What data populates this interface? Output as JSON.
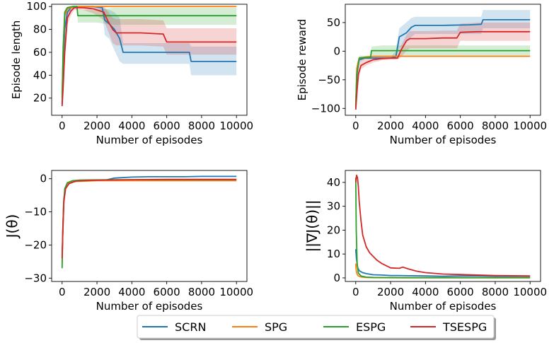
{
  "legend": {
    "entries": [
      {
        "name": "SCRN",
        "color": "#1f77b4"
      },
      {
        "name": "SPG",
        "color": "#ff7f0e"
      },
      {
        "name": "ESPG",
        "color": "#2ca02c"
      },
      {
        "name": "TSESPG",
        "color": "#d62728"
      }
    ]
  },
  "chart_data": [
    {
      "type": "line",
      "title": "",
      "xlabel": "Number of episodes",
      "ylabel": "Episode length",
      "xlim": [
        -600,
        10600
      ],
      "ylim": [
        5,
        102
      ],
      "xticks": [
        0,
        2000,
        4000,
        6000,
        8000,
        10000
      ],
      "yticks": [
        20,
        40,
        60,
        80,
        100
      ],
      "grid": false,
      "series": [
        {
          "name": "SCRN",
          "color": "#1f77b4",
          "x": [
            0,
            60,
            150,
            300,
            500,
            800,
            1200,
            1800,
            2300,
            2450,
            2700,
            3000,
            3300,
            3500,
            4000,
            5000,
            6000,
            7000,
            7300,
            7400,
            8000,
            9000,
            10000
          ],
          "y": [
            15,
            45,
            80,
            95,
            99,
            100,
            100,
            100,
            99,
            88,
            85,
            80,
            72,
            60,
            60,
            60,
            60,
            60,
            60,
            52,
            52,
            52,
            52
          ],
          "band_lo": [
            12,
            35,
            70,
            90,
            97,
            99,
            99,
            99,
            95,
            75,
            72,
            62,
            52,
            50,
            50,
            50,
            50,
            50,
            50,
            40,
            40,
            40,
            40
          ],
          "band_hi": [
            18,
            55,
            90,
            99,
            100,
            100,
            100,
            100,
            100,
            98,
            97,
            95,
            90,
            68,
            68,
            68,
            68,
            68,
            68,
            65,
            65,
            65,
            65
          ]
        },
        {
          "name": "SPG",
          "color": "#ff7f0e",
          "x": [
            0,
            60,
            150,
            300,
            600,
            1000,
            3000,
            6000,
            10000
          ],
          "y": [
            20,
            60,
            92,
            98,
            99.5,
            100,
            100,
            100,
            100
          ],
          "band_lo": [
            18,
            55,
            88,
            97,
            99,
            99.5,
            99.5,
            99.5,
            99.5
          ],
          "band_hi": [
            22,
            65,
            95,
            99,
            100,
            100.5,
            100.5,
            100.5,
            100.5
          ]
        },
        {
          "name": "ESPG",
          "color": "#2ca02c",
          "x": [
            0,
            60,
            150,
            300,
            600,
            850,
            900,
            2000,
            2400,
            3000,
            5000,
            8000,
            10000
          ],
          "y": [
            20,
            65,
            95,
            99,
            100,
            100,
            92,
            92,
            92,
            92,
            92,
            92,
            92
          ],
          "band_lo": [
            18,
            55,
            92,
            98,
            99,
            99,
            86,
            86,
            85,
            84,
            84,
            84,
            84
          ],
          "band_hi": [
            22,
            70,
            98,
            100,
            100.5,
            100.5,
            97,
            97,
            98,
            99,
            99,
            99,
            99
          ]
        },
        {
          "name": "TSESPG",
          "color": "#d62728",
          "x": [
            0,
            60,
            150,
            300,
            500,
            700,
            900,
            1200,
            1800,
            2400,
            2600,
            2900,
            3100,
            3500,
            4500,
            5800,
            6000,
            7000,
            8000,
            10000
          ],
          "y": [
            13,
            30,
            60,
            90,
            96,
            99,
            99,
            99,
            98,
            95,
            88,
            80,
            77,
            77,
            77,
            76,
            69,
            69,
            69,
            69
          ],
          "band_lo": [
            11,
            25,
            50,
            84,
            92,
            97,
            97,
            97,
            94,
            88,
            80,
            68,
            66,
            66,
            66,
            65,
            58,
            58,
            58,
            58
          ],
          "band_hi": [
            15,
            38,
            70,
            95,
            99,
            100,
            100,
            100,
            100,
            100,
            96,
            90,
            89,
            89,
            89,
            88,
            81,
            81,
            81,
            81
          ]
        }
      ]
    },
    {
      "type": "line",
      "title": "",
      "xlabel": "Number of episodes",
      "ylabel": "Episode reward",
      "xlim": [
        -600,
        10600
      ],
      "ylim": [
        -112,
        82
      ],
      "xticks": [
        0,
        2000,
        4000,
        6000,
        8000,
        10000
      ],
      "yticks": [
        -100,
        -50,
        0,
        50
      ],
      "grid": false,
      "series": [
        {
          "name": "SCRN",
          "color": "#1f77b4",
          "x": [
            0,
            60,
            200,
            500,
            1000,
            1500,
            2000,
            2300,
            2500,
            2900,
            3200,
            3400,
            5000,
            6500,
            7200,
            7300,
            8000,
            10000
          ],
          "y": [
            -98,
            -40,
            -15,
            -12,
            -12,
            -12,
            -12,
            -10,
            25,
            32,
            42,
            45,
            45,
            46,
            47,
            55,
            55,
            55
          ],
          "band_lo": [
            -100,
            -60,
            -20,
            -14,
            -14,
            -14,
            -14,
            -14,
            5,
            15,
            25,
            30,
            30,
            30,
            30,
            40,
            40,
            40
          ],
          "band_hi": [
            -95,
            -25,
            -10,
            -10,
            -10,
            -10,
            -10,
            0,
            40,
            50,
            58,
            60,
            60,
            60,
            60,
            72,
            72,
            72
          ]
        },
        {
          "name": "SPG",
          "color": "#ff7f0e",
          "x": [
            0,
            60,
            200,
            600,
            1000,
            3000,
            6000,
            10000
          ],
          "y": [
            -95,
            -30,
            -12,
            -10,
            -9,
            -9,
            -9,
            -9
          ],
          "band_lo": [
            -98,
            -40,
            -14,
            -11,
            -10,
            -10,
            -10,
            -10
          ],
          "band_hi": [
            -92,
            -20,
            -10,
            -9,
            -8,
            -8,
            -8,
            -8
          ]
        },
        {
          "name": "ESPG",
          "color": "#2ca02c",
          "x": [
            0,
            60,
            200,
            600,
            850,
            900,
            1500,
            2500,
            4000,
            6000,
            8000,
            10000
          ],
          "y": [
            -95,
            -40,
            -12,
            -11,
            -11,
            1,
            1,
            1,
            1,
            1,
            1,
            1
          ],
          "band_lo": [
            -100,
            -55,
            -15,
            -13,
            -13,
            -8,
            -8,
            -9,
            -9,
            -9,
            -9,
            -9
          ],
          "band_hi": [
            -90,
            -25,
            -8,
            -8,
            -8,
            8,
            10,
            10,
            10,
            10,
            10,
            10
          ]
        },
        {
          "name": "TSESPG",
          "color": "#d62728",
          "x": [
            0,
            60,
            150,
            300,
            600,
            1000,
            1500,
            2000,
            2400,
            2600,
            2900,
            3100,
            4000,
            5000,
            5800,
            6000,
            7000,
            8000,
            10000
          ],
          "y": [
            -102,
            -75,
            -40,
            -25,
            -20,
            -15,
            -13,
            -12,
            -12,
            2,
            18,
            22,
            22,
            23,
            23,
            33,
            34,
            34,
            34
          ],
          "band_lo": [
            -104,
            -85,
            -55,
            -32,
            -25,
            -20,
            -16,
            -15,
            -15,
            -10,
            0,
            5,
            5,
            5,
            5,
            18,
            18,
            18,
            18
          ],
          "band_hi": [
            -100,
            -60,
            -25,
            -15,
            -12,
            -10,
            -9,
            -8,
            -8,
            10,
            28,
            35,
            35,
            36,
            36,
            48,
            50,
            50,
            50
          ]
        }
      ]
    },
    {
      "type": "line",
      "title": "",
      "xlabel": "Number of episodes",
      "ylabel": "J(θ)",
      "xlim": [
        -600,
        10600
      ],
      "ylim": [
        -31,
        2.5
      ],
      "xticks": [
        0,
        2000,
        4000,
        6000,
        8000,
        10000
      ],
      "yticks": [
        -30,
        -20,
        -10,
        0
      ],
      "grid": false,
      "series": [
        {
          "name": "SCRN",
          "color": "#1f77b4",
          "x": [
            0,
            40,
            100,
            200,
            400,
            800,
            1500,
            2500,
            3000,
            4000,
            5000,
            6000,
            7000,
            8000,
            9000,
            10000
          ],
          "y": [
            -24,
            -15,
            -6,
            -2.5,
            -1.2,
            -0.7,
            -0.5,
            -0.4,
            0.2,
            0.5,
            0.6,
            0.6,
            0.6,
            0.7,
            0.7,
            0.7
          ]
        },
        {
          "name": "SPG",
          "color": "#ff7f0e",
          "x": [
            0,
            40,
            100,
            200,
            400,
            800,
            2000,
            5000,
            10000
          ],
          "y": [
            -25,
            -16,
            -6,
            -2.5,
            -1.2,
            -0.8,
            -0.6,
            -0.6,
            -0.6
          ]
        },
        {
          "name": "ESPG",
          "color": "#2ca02c",
          "x": [
            0,
            30,
            80,
            150,
            300,
            600,
            1000,
            3000,
            6000,
            10000
          ],
          "y": [
            -27,
            -18,
            -8,
            -3,
            -1.2,
            -0.6,
            -0.4,
            -0.3,
            -0.3,
            -0.3
          ]
        },
        {
          "name": "TSESPG",
          "color": "#d62728",
          "x": [
            0,
            40,
            100,
            200,
            400,
            800,
            1500,
            2500,
            4000,
            6000,
            8000,
            10000
          ],
          "y": [
            -24,
            -16,
            -7,
            -3,
            -1.5,
            -0.7,
            -0.5,
            -0.4,
            -0.3,
            -0.2,
            -0.2,
            -0.2
          ]
        }
      ]
    },
    {
      "type": "line",
      "title": "",
      "xlabel": "Number of episodes",
      "ylabel": "||∇J(θ)||",
      "xlim": [
        -600,
        10600
      ],
      "ylim": [
        -1.5,
        45
      ],
      "xticks": [
        0,
        2000,
        4000,
        6000,
        8000,
        10000
      ],
      "yticks": [
        0,
        10,
        20,
        30,
        40
      ],
      "grid": false,
      "series": [
        {
          "name": "SCRN",
          "color": "#1f77b4",
          "x": [
            0,
            40,
            100,
            200,
            400,
            600,
            1000,
            1500,
            2000,
            2500,
            3000,
            4000,
            5000,
            6000,
            7000,
            8000,
            9000,
            10000
          ],
          "y": [
            12,
            8,
            4.5,
            3,
            2.2,
            1.8,
            1.3,
            1.2,
            1.0,
            1.0,
            0.9,
            0.8,
            0.7,
            0.8,
            0.8,
            0.7,
            0.7,
            0.7
          ]
        },
        {
          "name": "SPG",
          "color": "#ff7f0e",
          "x": [
            0,
            30,
            80,
            150,
            300,
            600,
            1000,
            3000,
            6000,
            10000
          ],
          "y": [
            6,
            3,
            1.5,
            0.8,
            0.4,
            0.2,
            0.1,
            0.05,
            0.05,
            0.05
          ]
        },
        {
          "name": "ESPG",
          "color": "#2ca02c",
          "x": [
            0,
            30,
            80,
            150,
            300,
            600,
            1000,
            3000,
            6000,
            10000
          ],
          "y": [
            42,
            20,
            6,
            2,
            0.8,
            0.3,
            0.2,
            0.1,
            0.1,
            0.1
          ]
        },
        {
          "name": "TSESPG",
          "color": "#d62728",
          "x": [
            0,
            50,
            100,
            150,
            200,
            300,
            400,
            600,
            800,
            1000,
            1200,
            1500,
            2000,
            2500,
            2700,
            3000,
            3500,
            4000,
            5000,
            6000,
            7000,
            8000,
            9000,
            10000
          ],
          "y": [
            40,
            43,
            42,
            38,
            32,
            24,
            18,
            13,
            10.5,
            9,
            7.5,
            6,
            4.2,
            4.0,
            4.5,
            3.8,
            2.8,
            2.2,
            1.6,
            1.4,
            1.2,
            1.0,
            0.9,
            0.8
          ]
        }
      ]
    }
  ]
}
